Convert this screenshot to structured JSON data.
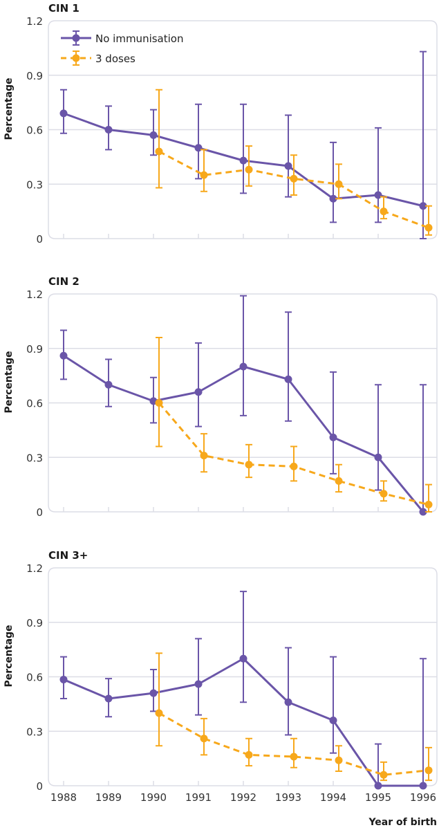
{
  "chart_data": [
    {
      "type": "line",
      "title": "CIN 1",
      "xlabel": "",
      "ylabel": "Percentage",
      "x": [
        1988,
        1989,
        1990,
        1991,
        1992,
        1993,
        1994,
        1995,
        1996
      ],
      "ylim": [
        0,
        1.2
      ],
      "yticks": [
        "0",
        "0.3",
        "0.6",
        "0.9",
        "1.2"
      ],
      "grid": true,
      "legend": "top-left",
      "series": [
        {
          "name": "No immunisation",
          "color": "#6A55A8",
          "style": "solid",
          "values": [
            0.69,
            0.6,
            0.57,
            0.5,
            0.43,
            0.4,
            0.22,
            0.24,
            0.18
          ],
          "lower": [
            0.58,
            0.49,
            0.46,
            0.33,
            0.25,
            0.23,
            0.09,
            0.09,
            0.0
          ],
          "upper": [
            0.82,
            0.73,
            0.71,
            0.74,
            0.74,
            0.68,
            0.53,
            0.61,
            1.03
          ]
        },
        {
          "name": "3 doses",
          "color": "#F7A81B",
          "style": "dashed",
          "values": [
            null,
            null,
            0.48,
            0.35,
            0.38,
            0.33,
            0.3,
            0.15,
            0.06
          ],
          "lower": [
            null,
            null,
            0.28,
            0.26,
            0.29,
            0.24,
            0.22,
            0.11,
            0.02
          ],
          "upper": [
            null,
            null,
            0.82,
            0.49,
            0.51,
            0.46,
            0.41,
            0.23,
            0.18
          ]
        }
      ]
    },
    {
      "type": "line",
      "title": "CIN 2",
      "xlabel": "",
      "ylabel": "Percentage",
      "x": [
        1988,
        1989,
        1990,
        1991,
        1992,
        1993,
        1994,
        1995,
        1996
      ],
      "ylim": [
        0,
        1.2
      ],
      "yticks": [
        "0",
        "0.3",
        "0.6",
        "0.9",
        "1.2"
      ],
      "grid": true,
      "series": [
        {
          "name": "No immunisation",
          "color": "#6A55A8",
          "style": "solid",
          "values": [
            0.86,
            0.7,
            0.61,
            0.66,
            0.8,
            0.73,
            0.41,
            0.3,
            0.0
          ],
          "lower": [
            0.73,
            0.58,
            0.49,
            0.47,
            0.53,
            0.5,
            0.21,
            0.12,
            0.0
          ],
          "upper": [
            1.0,
            0.84,
            0.74,
            0.93,
            1.19,
            1.1,
            0.77,
            0.7,
            0.7
          ]
        },
        {
          "name": "3 doses",
          "color": "#F7A81B",
          "style": "dashed",
          "values": [
            null,
            null,
            0.6,
            0.31,
            0.26,
            0.25,
            0.17,
            0.1,
            0.04
          ],
          "lower": [
            null,
            null,
            0.36,
            0.22,
            0.19,
            0.17,
            0.11,
            0.06,
            0.0
          ],
          "upper": [
            null,
            null,
            0.96,
            0.43,
            0.37,
            0.36,
            0.26,
            0.17,
            0.15
          ]
        }
      ]
    },
    {
      "type": "line",
      "title": "CIN 3+",
      "xlabel": "Year of birth",
      "ylabel": "Percentage",
      "x": [
        1988,
        1989,
        1990,
        1991,
        1992,
        1993,
        1994,
        1995,
        1996
      ],
      "xticks": [
        "1988",
        "1989",
        "1990",
        "1991",
        "1992",
        "1993",
        "1994",
        "1995",
        "1996"
      ],
      "ylim": [
        0,
        1.2
      ],
      "yticks": [
        "0",
        "0.3",
        "0.6",
        "0.9",
        "1.2"
      ],
      "grid": true,
      "series": [
        {
          "name": "No immunisation",
          "color": "#6A55A8",
          "style": "solid",
          "values": [
            0.585,
            0.48,
            0.51,
            0.56,
            0.7,
            0.46,
            0.36,
            0.0,
            0.0
          ],
          "lower": [
            0.48,
            0.38,
            0.41,
            0.39,
            0.46,
            0.28,
            0.18,
            0.0,
            0.0
          ],
          "upper": [
            0.71,
            0.59,
            0.64,
            0.81,
            1.07,
            0.76,
            0.71,
            0.23,
            0.7
          ]
        },
        {
          "name": "3 doses",
          "color": "#F7A81B",
          "style": "dashed",
          "values": [
            null,
            null,
            0.4,
            0.26,
            0.17,
            0.16,
            0.14,
            0.06,
            0.085
          ],
          "lower": [
            null,
            null,
            0.22,
            0.17,
            0.11,
            0.1,
            0.08,
            0.03,
            0.03
          ],
          "upper": [
            null,
            null,
            0.73,
            0.37,
            0.26,
            0.26,
            0.22,
            0.13,
            0.21
          ]
        }
      ]
    }
  ],
  "legend": {
    "items": [
      {
        "label": "No immunisation",
        "color": "#6A55A8",
        "style": "solid"
      },
      {
        "label": "3 doses",
        "color": "#F7A81B",
        "style": "dashed"
      }
    ]
  },
  "colors": {
    "grid": "#DCDDE6",
    "frame": "#DCDDE6"
  }
}
